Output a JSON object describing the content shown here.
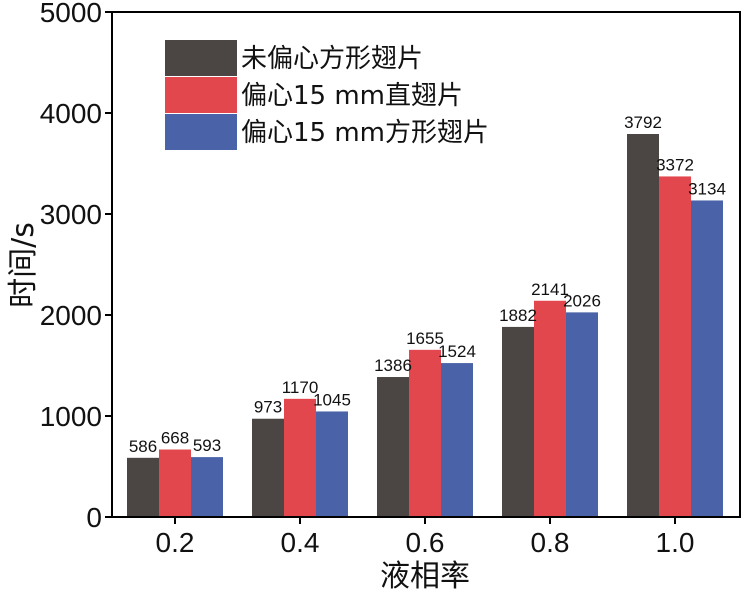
{
  "chart_data": {
    "type": "bar",
    "categories": [
      "0.2",
      "0.4",
      "0.6",
      "0.8",
      "1.0"
    ],
    "series": [
      {
        "name": "未偏心方形翅片",
        "values": [
          586,
          973,
          1386,
          1882,
          3792
        ],
        "color": "#4b4543"
      },
      {
        "name": "偏心15 mm直翅片",
        "values": [
          668,
          1170,
          1655,
          2141,
          3372
        ],
        "color": "#e2474d"
      },
      {
        "name": "偏心15 mm方形翅片",
        "values": [
          593,
          1045,
          1524,
          2026,
          3134
        ],
        "color": "#4a62a8"
      }
    ],
    "xlabel": "液相率",
    "ylabel": "时间/s",
    "ylim": [
      0,
      5000
    ],
    "yticks": [
      0,
      1000,
      2000,
      3000,
      4000,
      5000
    ],
    "grid": false,
    "legend": "top-left",
    "data_labels": true
  }
}
